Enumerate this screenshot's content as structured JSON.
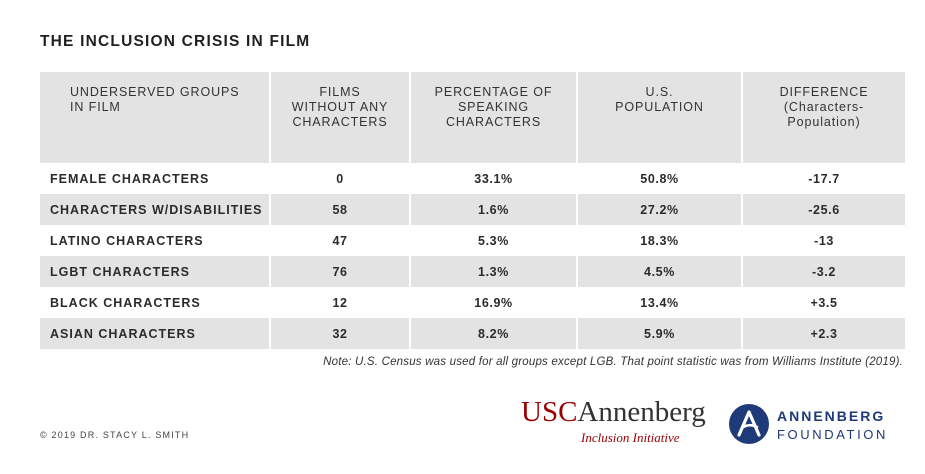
{
  "title": "THE INCLUSION CRISIS IN FILM",
  "chart_data": {
    "type": "table",
    "title": "THE INCLUSION CRISIS IN FILM",
    "columns": [
      "UNDERSERVED GROUPS\nIN FILM",
      "FILMS\nWITHOUT ANY\nCHARACTERS",
      "PERCENTAGE OF\nSPEAKING\nCHARACTERS",
      "U.S.\nPOPULATION",
      "DIFFERENCE\n(Characters-\nPopulation)"
    ],
    "rows": [
      [
        "FEMALE CHARACTERS",
        "0",
        "33.1%",
        "50.8%",
        "-17.7"
      ],
      [
        "CHARACTERS W/DISABILITIES",
        "58",
        "1.6%",
        "27.2%",
        "-25.6"
      ],
      [
        "LATINO CHARACTERS",
        "47",
        "5.3%",
        "18.3%",
        "-13"
      ],
      [
        "LGBT CHARACTERS",
        "76",
        "1.3%",
        "4.5%",
        "-3.2"
      ],
      [
        "BLACK CHARACTERS",
        "12",
        "16.9%",
        "13.4%",
        "+3.5"
      ],
      [
        "ASIAN CHARACTERS",
        "32",
        "8.2%",
        "5.9%",
        "+2.3"
      ]
    ]
  },
  "note": "Note: U.S. Census was used for all groups except LGB. That point statistic was from Williams Institute (2019).",
  "copyright": "© 2019 DR. STACY L. SMITH",
  "logos": {
    "usc_part1": "USC",
    "usc_part2": "Annenberg",
    "usc_sub": "Inclusion Initiative",
    "foundation_line1": "ANNENBERG",
    "foundation_line2": "FOUNDATION"
  },
  "colors": {
    "header_bg": "#e3e3e3",
    "row_alt_bg": "#e3e3e3",
    "row_bg": "#ffffff",
    "usc_red": "#990000",
    "foundation_blue": "#1e3a78"
  },
  "icons": {
    "foundation_mark": "annenberg-a-circle-icon"
  }
}
